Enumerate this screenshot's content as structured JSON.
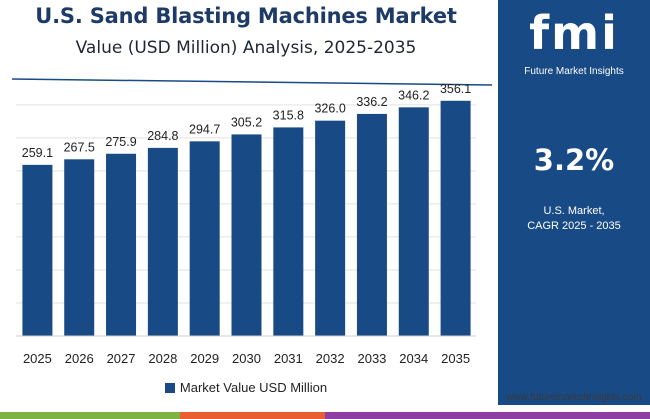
{
  "header": {
    "title": "U.S. Sand Blasting Machines Market",
    "subtitle": "Value (USD Million) Analysis, 2025-2035"
  },
  "side_panel": {
    "logo_text": "fmi",
    "logo_caption": "Future Market Insights",
    "cagr_value": "3.2%",
    "cagr_label_line1": "U.S. Market,",
    "cagr_label_line2": "CAGR 2025 - 2035",
    "website": "www.futuremarketinsights.com"
  },
  "colors": {
    "bar": "#184a85",
    "title": "#1d3b66",
    "panel": "#184a85",
    "strip": [
      "#7cb342",
      "#e95f32",
      "#8e3fa3"
    ]
  },
  "chart_data": {
    "type": "bar",
    "categories": [
      "2025",
      "2026",
      "2027",
      "2028",
      "2029",
      "2030",
      "2031",
      "2032",
      "2033",
      "2034",
      "2035"
    ],
    "series": [
      {
        "name": "Market Value USD Million",
        "values": [
          259.1,
          267.5,
          275.9,
          284.8,
          294.7,
          305.2,
          315.8,
          326.0,
          336.2,
          346.2,
          356.1
        ]
      }
    ],
    "data_labels": [
      "259.1",
      "267.5",
      "275.9",
      "284.8",
      "294.7",
      "305.2",
      "315.8",
      "326.0",
      "336.2",
      "346.2",
      "356.1"
    ],
    "ylim": [
      0,
      380
    ],
    "grid": true,
    "legend_position": "bottom"
  }
}
